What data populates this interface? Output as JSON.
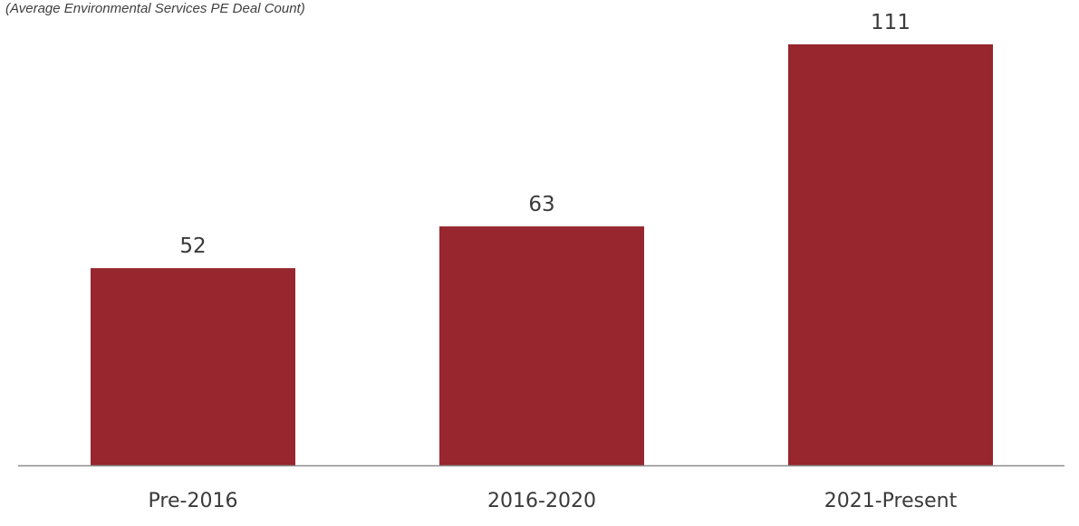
{
  "chart_data": {
    "type": "bar",
    "title": "",
    "subtitle": "(Average Environmental Services PE Deal Count)",
    "categories": [
      "Pre-2016",
      "2016-2020",
      "2021-Present"
    ],
    "series": [
      {
        "values": [
          52,
          63,
          111
        ]
      }
    ],
    "xlabel": "",
    "ylabel": "",
    "ylim": [
      0,
      111
    ],
    "grid": false,
    "legend": "none",
    "colors": {
      "bar": "#97262E",
      "axis": "#8c8c8c",
      "text": "#3a3a3a"
    }
  }
}
